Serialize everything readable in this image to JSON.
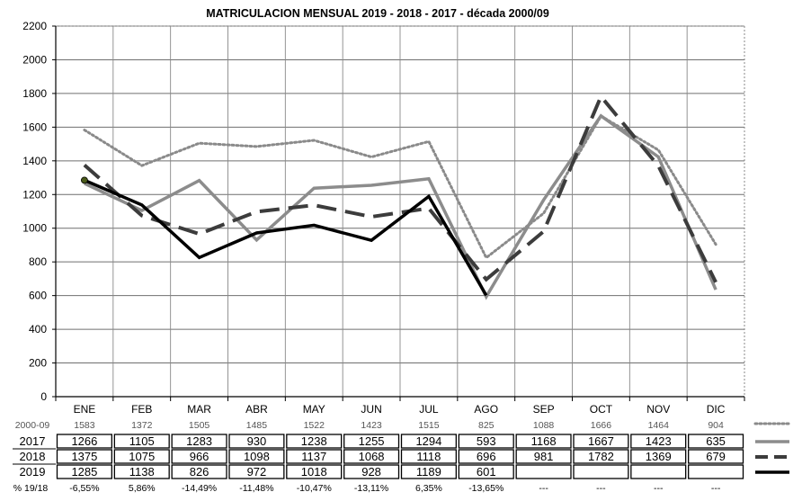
{
  "chart_data": {
    "type": "line",
    "title": "MATRICULACION MENSUAL  2019 - 2018 - 2017 - década 2000/09",
    "categories": [
      "ENE",
      "FEB",
      "MAR",
      "ABR",
      "MAY",
      "JUN",
      "JUL",
      "AGO",
      "SEP",
      "OCT",
      "NOV",
      "DIC"
    ],
    "y_ticks": [
      "0",
      "200",
      "400",
      "600",
      "800",
      "1000",
      "1200",
      "1400",
      "1600",
      "1800",
      "2000",
      "2200"
    ],
    "ylim": [
      0,
      2200
    ],
    "grid": true,
    "series": [
      {
        "name": "2000-09",
        "values": [
          1583,
          1372,
          1505,
          1485,
          1522,
          1423,
          1515,
          825,
          1088,
          1666,
          1464,
          904
        ],
        "color": "#8a8a8a",
        "style": "dotted"
      },
      {
        "name": "2017",
        "values": [
          1266,
          1105,
          1283,
          930,
          1238,
          1255,
          1294,
          593,
          1168,
          1667,
          1423,
          635
        ],
        "color": "#8c8c8c",
        "style": "solid"
      },
      {
        "name": "2018",
        "values": [
          1375,
          1075,
          966,
          1098,
          1137,
          1068,
          1118,
          696,
          981,
          1782,
          1369,
          679
        ],
        "color": "#3c3c3c",
        "style": "dashed"
      },
      {
        "name": "2019",
        "values": [
          1285,
          1138,
          826,
          972,
          1018,
          928,
          1189,
          601,
          null,
          null,
          null,
          null
        ],
        "color": "#000000",
        "style": "solid"
      }
    ],
    "table": {
      "row_2000_09": [
        "1583",
        "1372",
        "1505",
        "1485",
        "1522",
        "1423",
        "1515",
        "825",
        "1088",
        "1666",
        "1464",
        "904"
      ],
      "row_2017": [
        "1266",
        "1105",
        "1283",
        "930",
        "1238",
        "1255",
        "1294",
        "593",
        "1168",
        "1667",
        "1423",
        "635"
      ],
      "row_2018": [
        "1375",
        "1075",
        "966",
        "1098",
        "1137",
        "1068",
        "1118",
        "696",
        "981",
        "1782",
        "1369",
        "679"
      ],
      "row_2019": [
        "1285",
        "1138",
        "826",
        "972",
        "1018",
        "928",
        "1189",
        "601",
        "",
        "",
        "",
        ""
      ],
      "pct_label": "% 19/18",
      "pct_values": [
        "-6,55%",
        "5,86%",
        "-14,49%",
        "-11,48%",
        "-10,47%",
        "-13,11%",
        "6,35%",
        "-13,65%",
        "---",
        "---",
        "---",
        "---"
      ]
    }
  }
}
